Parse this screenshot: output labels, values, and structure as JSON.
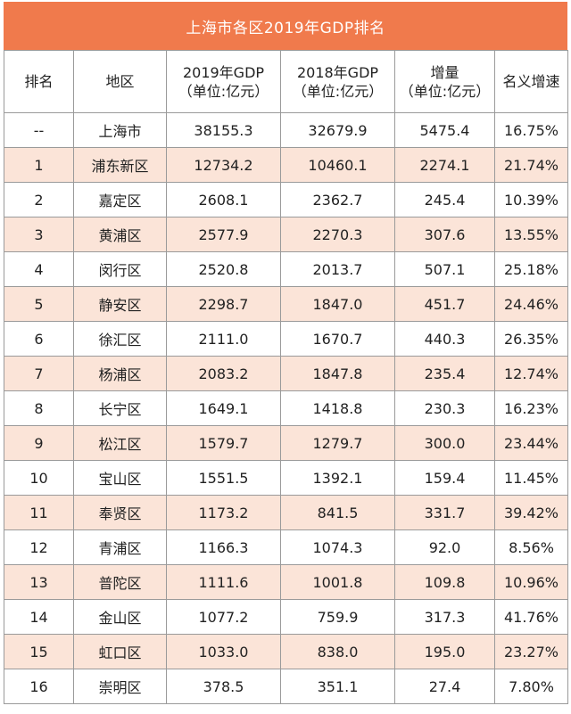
{
  "title": "上海市各区2019年GDP排名",
  "headers": {
    "rank": "排名",
    "region": "地区",
    "gdp2019_line1": "2019年GDP",
    "gdp2019_line2": "（单位:亿元）",
    "gdp2018_line1": "2018年GDP",
    "gdp2018_line2": "（单位:亿元）",
    "increase_line1": "增量",
    "increase_line2": "（单位:亿元）",
    "growth": "名义增速"
  },
  "chart_data": {
    "type": "table",
    "title": "上海市各区2019年GDP排名",
    "columns": [
      "排名",
      "地区",
      "2019年GDP（单位:亿元）",
      "2018年GDP（单位:亿元）",
      "增量（单位:亿元）",
      "名义增速"
    ],
    "rows": [
      [
        "--",
        "上海市",
        "38155.3",
        "32679.9",
        "5475.4",
        "16.75%"
      ],
      [
        "1",
        "浦东新区",
        "12734.2",
        "10460.1",
        "2274.1",
        "21.74%"
      ],
      [
        "2",
        "嘉定区",
        "2608.1",
        "2362.7",
        "245.4",
        "10.39%"
      ],
      [
        "3",
        "黄浦区",
        "2577.9",
        "2270.3",
        "307.6",
        "13.55%"
      ],
      [
        "4",
        "闵行区",
        "2520.8",
        "2013.7",
        "507.1",
        "25.18%"
      ],
      [
        "5",
        "静安区",
        "2298.7",
        "1847.0",
        "451.7",
        "24.46%"
      ],
      [
        "6",
        "徐汇区",
        "2111.0",
        "1670.7",
        "440.3",
        "26.35%"
      ],
      [
        "7",
        "杨浦区",
        "2083.2",
        "1847.8",
        "235.4",
        "12.74%"
      ],
      [
        "8",
        "长宁区",
        "1649.1",
        "1418.8",
        "230.3",
        "16.23%"
      ],
      [
        "9",
        "松江区",
        "1579.7",
        "1279.7",
        "300.0",
        "23.44%"
      ],
      [
        "10",
        "宝山区",
        "1551.5",
        "1392.1",
        "159.4",
        "11.45%"
      ],
      [
        "11",
        "奉贤区",
        "1173.2",
        "841.5",
        "331.7",
        "39.42%"
      ],
      [
        "12",
        "青浦区",
        "1166.3",
        "1074.3",
        "92.0",
        "8.56%"
      ],
      [
        "13",
        "普陀区",
        "1111.6",
        "1001.8",
        "109.8",
        "10.96%"
      ],
      [
        "14",
        "金山区",
        "1077.2",
        "759.9",
        "317.3",
        "41.76%"
      ],
      [
        "15",
        "虹口区",
        "1033.0",
        "838.0",
        "195.0",
        "23.27%"
      ],
      [
        "16",
        "崇明区",
        "378.5",
        "351.1",
        "27.4",
        "7.80%"
      ]
    ]
  },
  "colors": {
    "header_bg": "#f07a4c",
    "stripe_bg": "#fbe4d8",
    "border": "#9a9a9a"
  }
}
